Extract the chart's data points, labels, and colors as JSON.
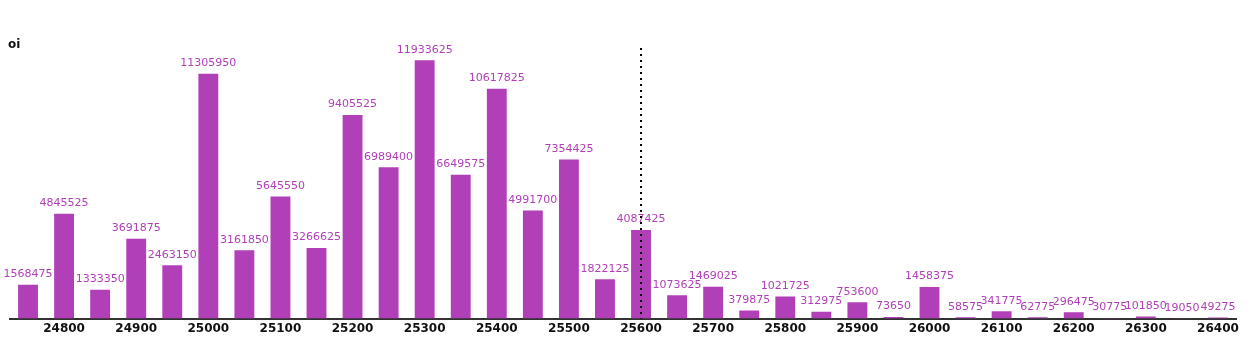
{
  "chart_data": {
    "type": "bar",
    "ylabel": "oi",
    "categories": [
      null,
      "24800",
      null,
      "24900",
      null,
      "25000",
      null,
      "25100",
      null,
      "25200",
      null,
      "25300",
      null,
      "25400",
      null,
      "25500",
      null,
      "25600",
      null,
      "25700",
      null,
      "25800",
      null,
      "25900",
      null,
      "26000",
      null,
      "26100",
      null,
      "26200",
      null,
      "26300",
      null,
      "26400"
    ],
    "values": [
      1568475,
      4845525,
      1333350,
      3691875,
      2463150,
      11305950,
      3161850,
      5645550,
      3266625,
      9405525,
      6989400,
      11933625,
      6649575,
      10617825,
      4991700,
      7354425,
      1822125,
      4087425,
      1073625,
      1469025,
      379875,
      1021725,
      312975,
      753600,
      73650,
      1458375,
      58575,
      341775,
      62775,
      296475,
      30775,
      101850,
      19050,
      49275
    ],
    "color": "#b03fb8",
    "ylim": [
      0,
      12500000
    ],
    "tick_labels": "x",
    "legend": false,
    "data_labels": true,
    "ref_lines": [
      {
        "axis": "x",
        "value": "25600",
        "color": "#000000",
        "line_style": "dotted"
      }
    ]
  }
}
